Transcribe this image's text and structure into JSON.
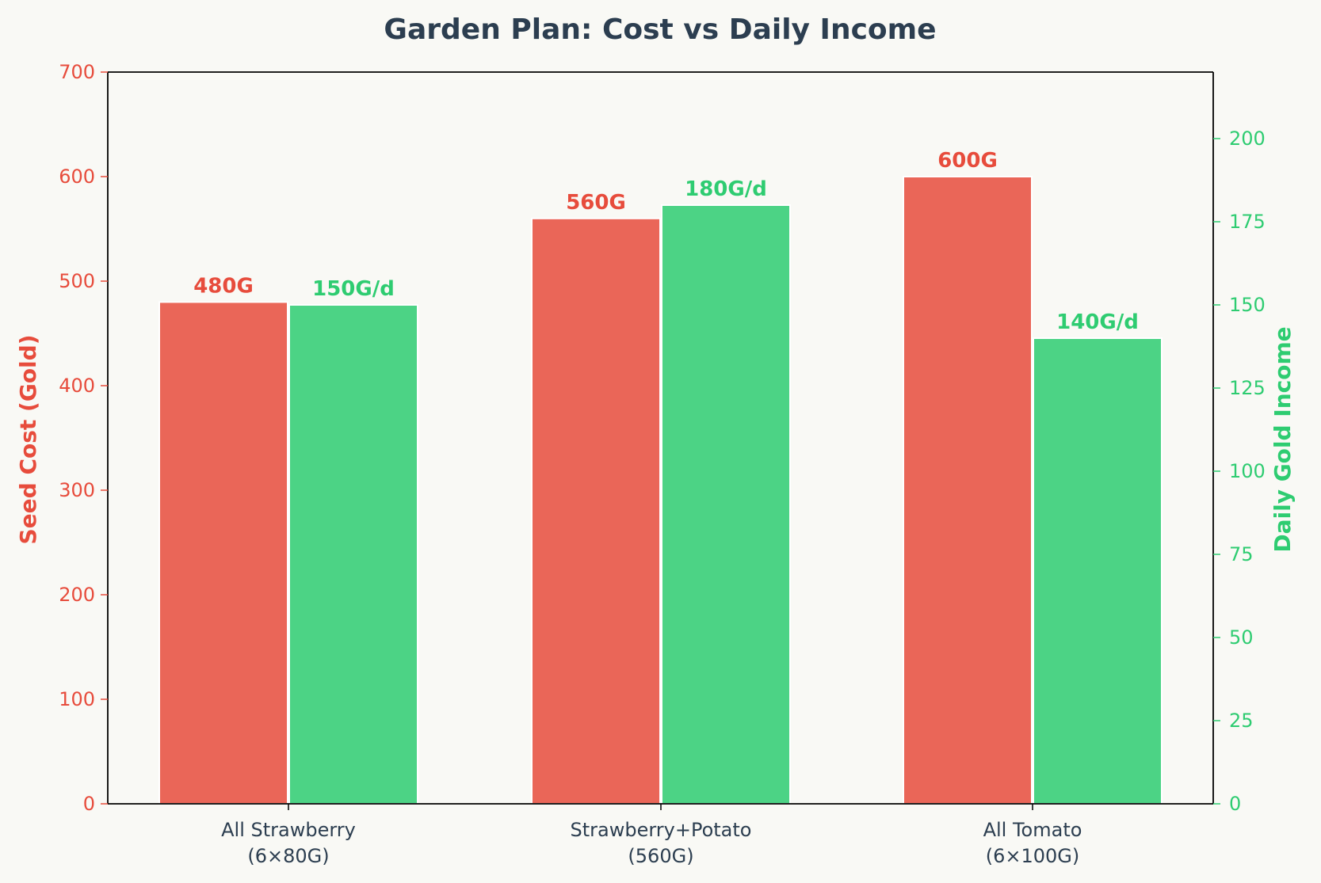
{
  "chart_data": {
    "type": "bar",
    "title": "Garden Plan: Cost vs Daily Income",
    "categories": [
      [
        "All Strawberry",
        "(6×80G)"
      ],
      [
        "Strawberry+Potato",
        "(560G)"
      ],
      [
        "All Tomato",
        "(6×100G)"
      ]
    ],
    "series": [
      {
        "name": "Seed Cost",
        "axis": "left",
        "values": [
          480,
          560,
          600
        ],
        "labels": [
          "480G",
          "560G",
          "600G"
        ],
        "color": "#e74c3c"
      },
      {
        "name": "Daily Gold Income",
        "axis": "right",
        "values": [
          150,
          180,
          140
        ],
        "labels": [
          "150G/d",
          "180G/d",
          "140G/d"
        ],
        "color": "#2ecc71"
      }
    ],
    "ylabel_left": "Seed Cost (Gold)",
    "ylabel_right": "Daily Gold Income",
    "ylim_left": [
      0,
      700
    ],
    "ylim_right": [
      0,
      220
    ],
    "yticks_left": [
      0,
      100,
      200,
      300,
      400,
      500,
      600,
      700
    ],
    "yticks_right": [
      0,
      25,
      50,
      75,
      100,
      125,
      150,
      175,
      200
    ],
    "grid": false,
    "legend": "none"
  },
  "colors": {
    "cost_axis": "#e74c3c",
    "income_axis": "#2ecc71",
    "cost_bar": "#e74c3c",
    "income_bar": "#2ecc71",
    "text_dark": "#2c3e50",
    "background": "#f9f9f5"
  }
}
